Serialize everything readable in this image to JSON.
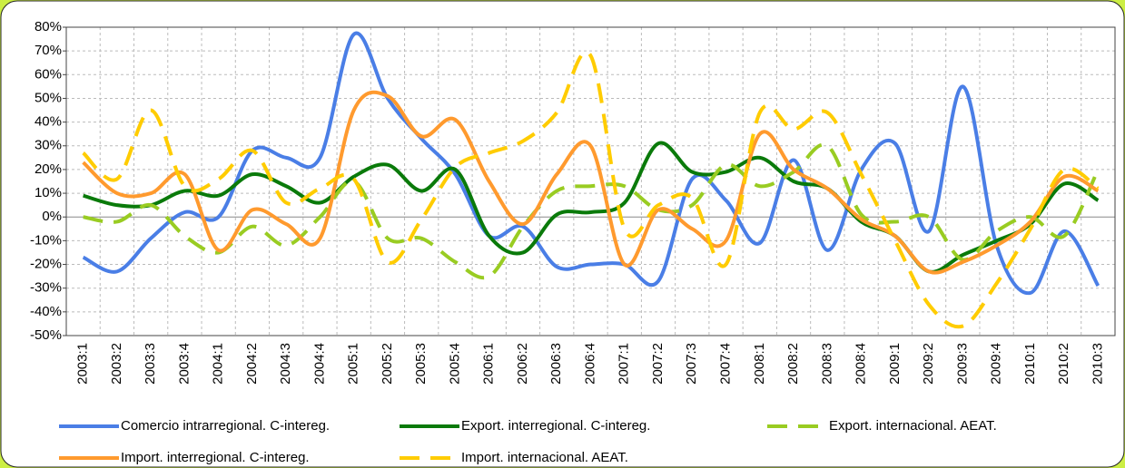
{
  "chart_data": {
    "type": "line",
    "categories": [
      "2003:1",
      "2003:2",
      "2003:3",
      "2003:4",
      "2004:1",
      "2004:2",
      "2004:3",
      "2004:4",
      "2005:1",
      "2005:2",
      "2005:3",
      "2005:4",
      "2006:1",
      "2006:2",
      "2006:3",
      "2006:4",
      "2007:1",
      "2007:2",
      "2007:3",
      "2007:4",
      "2008:1",
      "2008:2",
      "2008:3",
      "2008:4",
      "2009:1",
      "2009:2",
      "2009:3",
      "2009:4",
      "2010:1",
      "2010:2",
      "2010:3"
    ],
    "series": [
      {
        "name": "Comercio intrarregional. C-intereg.",
        "color": "#4a7ee6",
        "dashed": false,
        "values": [
          -17,
          -23,
          -9,
          2,
          0,
          28,
          25,
          25,
          77,
          50,
          33,
          18,
          -8,
          -4,
          -21,
          -20,
          -20,
          -27,
          16,
          7,
          -11,
          24,
          -14,
          20,
          31,
          -6,
          55,
          -12,
          -32,
          -6,
          -29
        ]
      },
      {
        "name": "Export. interregional. C-intereg.",
        "color": "#0a7a0a",
        "dashed": false,
        "values": [
          9,
          5,
          5,
          11,
          9,
          18,
          13,
          6,
          17,
          22,
          11,
          20,
          -8,
          -15,
          1,
          2,
          6,
          31,
          19,
          19,
          25,
          15,
          12,
          -2,
          -8,
          -23,
          -16,
          -10,
          -3,
          14,
          7
        ]
      },
      {
        "name": "Export. internacional. AEAT.",
        "color": "#99cc22",
        "dashed": true,
        "values": [
          0,
          -2,
          5,
          -8,
          -15,
          -4,
          -12,
          0,
          15,
          -9,
          -9,
          -19,
          -25,
          -4,
          11,
          13,
          13,
          3,
          5,
          22,
          13,
          19,
          30,
          1,
          -2,
          0,
          -18,
          -6,
          0,
          -8,
          20
        ]
      },
      {
        "name": "Import. interregional. C-intereg.",
        "color": "#ff9a2e",
        "dashed": false,
        "values": [
          23,
          10,
          10,
          18,
          -14,
          3,
          -3,
          -9,
          45,
          51,
          34,
          41,
          15,
          -3,
          18,
          30,
          -20,
          3,
          -5,
          -10,
          35,
          20,
          12,
          -1,
          -8,
          -23,
          -19,
          -12,
          -2,
          17,
          11
        ]
      },
      {
        "name": "Import. internacional. AEAT.",
        "color": "#ffcc00",
        "dashed": true,
        "values": [
          27,
          16,
          45,
          13,
          16,
          28,
          6,
          12,
          16,
          -19,
          -1,
          21,
          27,
          32,
          44,
          68,
          -5,
          5,
          8,
          -20,
          44,
          37,
          44,
          18,
          -10,
          -37,
          -46,
          -28,
          -5,
          20,
          12
        ]
      }
    ],
    "ylim": [
      -50,
      80
    ],
    "yticks": [
      {
        "value": -50,
        "label": "-50%"
      },
      {
        "value": -40,
        "label": "-40%"
      },
      {
        "value": -30,
        "label": "-30%"
      },
      {
        "value": -20,
        "label": "-20%"
      },
      {
        "value": -10,
        "label": "-10%"
      },
      {
        "value": 0,
        "label": "0%"
      },
      {
        "value": 10,
        "label": "10%"
      },
      {
        "value": 20,
        "label": "20%"
      },
      {
        "value": 30,
        "label": "30%"
      },
      {
        "value": 40,
        "label": "40%"
      },
      {
        "value": 50,
        "label": "50%"
      },
      {
        "value": 60,
        "label": "60%"
      },
      {
        "value": 70,
        "label": "70%"
      },
      {
        "value": 80,
        "label": "80%"
      }
    ],
    "grid": true,
    "legend": "bottom"
  }
}
